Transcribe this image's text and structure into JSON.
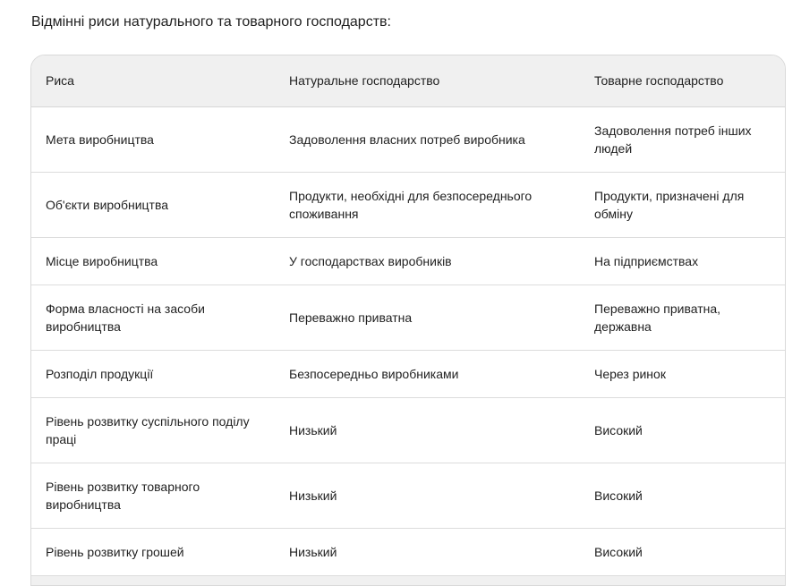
{
  "title": "Відмінні риси натурального та товарного господарств:",
  "table": {
    "headers": [
      "Риса",
      "Натуральне господарство",
      "Товарне господарство"
    ],
    "rows": [
      [
        "Мета виробництва",
        "Задоволення власних потреб виробника",
        "Задоволення потреб інших людей"
      ],
      [
        "Об'єкти виробництва",
        "Продукти, необхідні для безпосереднього споживання",
        "Продукти, призначені для обміну"
      ],
      [
        "Місце виробництва",
        "У господарствах виробників",
        "На підприємствах"
      ],
      [
        "Форма власності на засоби виробництва",
        "Переважно приватна",
        "Переважно приватна, державна"
      ],
      [
        "Розподіл продукції",
        "Безпосередньо виробниками",
        "Через ринок"
      ],
      [
        "Рівень розвитку суспільного поділу праці",
        "Низький",
        "Високий"
      ],
      [
        "Рівень розвитку товарного виробництва",
        "Низький",
        "Високий"
      ],
      [
        "Рівень розвитку грошей",
        "Низький",
        "Високий"
      ]
    ]
  }
}
